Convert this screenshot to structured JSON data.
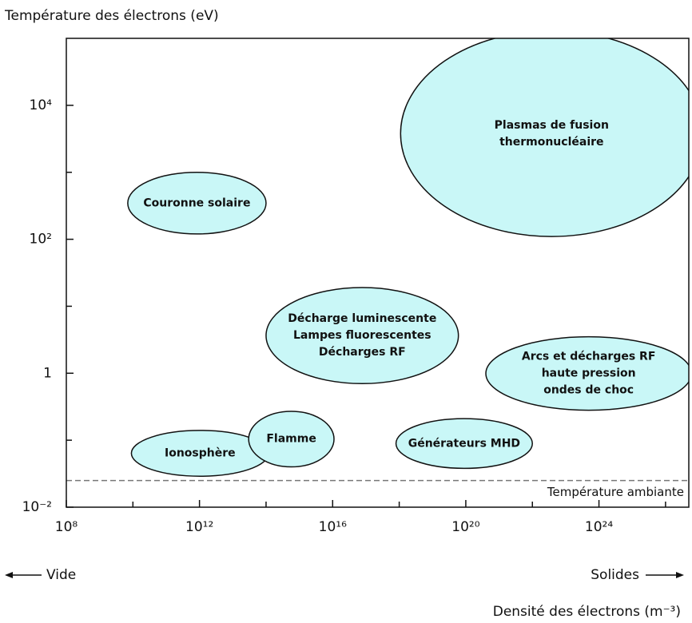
{
  "chart_data": {
    "type": "region",
    "y_axis_label": "Température des électrons (eV)",
    "x_axis_label": "Densité des électrons (m⁻³)",
    "left_annotation": "Vide",
    "right_annotation": "Solides",
    "xlog": true,
    "ylog": true,
    "xlim": [
      100000000.0,
      5e+26
    ],
    "ylim": [
      0.01,
      100000
    ],
    "xticks": [
      {
        "value": 100000000.0,
        "label": "10⁸"
      },
      {
        "value": 1000000000000.0,
        "label": "10¹²"
      },
      {
        "value": 1e+16,
        "label": "10¹⁶"
      },
      {
        "value": 1e+20,
        "label": "10²⁰"
      },
      {
        "value": 1e+24,
        "label": "10²⁴"
      }
    ],
    "xticks_minor": [
      10000000000.0,
      100000000000000.0,
      1e+18,
      1e+22,
      1e+26
    ],
    "yticks": [
      {
        "value": 0.01,
        "label": "10⁻²"
      },
      1,
      {
        "value": 100,
        "label": "10²"
      },
      {
        "value": 10000,
        "label": "10⁴"
      }
    ],
    "yticks_minor": [
      0.1,
      10,
      1000
    ],
    "color": "#c9f7f7",
    "regions": [
      {
        "label": [
          "Plasmas de fusion",
          "thermonucléaire"
        ],
        "x": [
          1.1e+18,
          1.3e+27
        ],
        "y": [
          110,
          130000
        ]
      },
      {
        "label": [
          "Couronne solaire"
        ],
        "x": [
          7000000000.0,
          100000000000000.0
        ],
        "y": [
          120,
          1000
        ]
      },
      {
        "label": [
          "Décharge luminescente",
          "Lampes fluorescentes",
          "Décharges RF"
        ],
        "x": [
          100000000000000.0,
          6e+19
        ],
        "y": [
          0.7,
          19
        ]
      },
      {
        "label": [
          "Arcs et décharges RF",
          "haute pression",
          "ondes de choc"
        ],
        "x": [
          4e+20,
          6e+26
        ],
        "y": [
          0.28,
          3.5
        ]
      },
      {
        "label": [
          "Générateurs MHD"
        ],
        "x": [
          8e+17,
          1e+22
        ],
        "y": [
          0.038,
          0.21
        ]
      },
      {
        "label": [
          "Ionosphère"
        ],
        "x": [
          9000000000.0,
          120000000000000.0
        ],
        "y": [
          0.029,
          0.14
        ]
      },
      {
        "label": [
          "Flamme"
        ],
        "x": [
          30000000000000.0,
          1.1e+16
        ],
        "y": [
          0.04,
          0.27
        ]
      }
    ],
    "reference_line": {
      "label": "Température ambiante",
      "value": 0.025
    }
  }
}
